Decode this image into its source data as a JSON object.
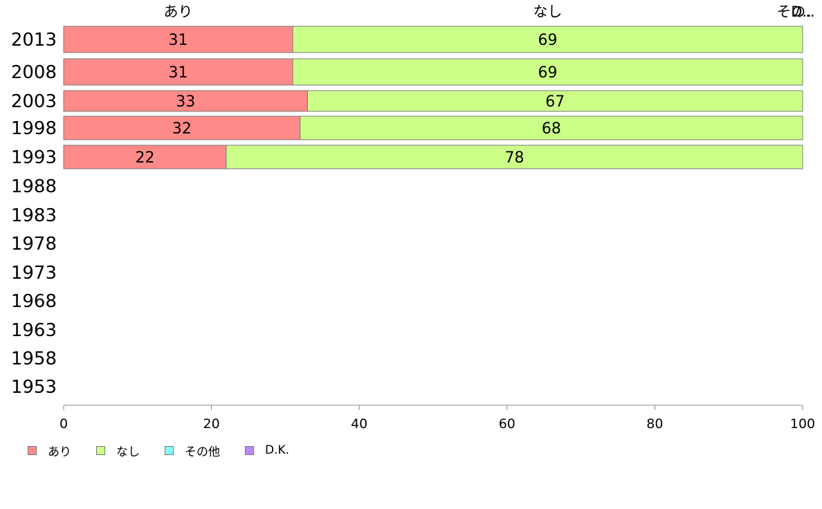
{
  "chart_data": {
    "type": "bar",
    "orientation": "horizontal",
    "stacked": true,
    "categories": [
      "2013",
      "2008",
      "2003",
      "1998",
      "1993",
      "1988",
      "1983",
      "1978",
      "1973",
      "1968",
      "1963",
      "1958",
      "1953"
    ],
    "series": [
      {
        "name": "あり",
        "color": "#ff8a8a",
        "values": [
          31,
          31,
          33,
          32,
          22,
          null,
          null,
          null,
          null,
          null,
          null,
          null,
          null
        ]
      },
      {
        "name": "なし",
        "color": "#ccff88",
        "values": [
          69,
          69,
          67,
          68,
          78,
          null,
          null,
          null,
          null,
          null,
          null,
          null,
          null
        ]
      },
      {
        "name": "その他",
        "color": "#88ffff",
        "values": [
          0,
          0,
          0,
          0,
          0,
          null,
          null,
          null,
          null,
          null,
          null,
          null,
          null
        ]
      },
      {
        "name": "D.K.",
        "color": "#bb88ff",
        "values": [
          0,
          0,
          0,
          0,
          0,
          null,
          null,
          null,
          null,
          null,
          null,
          null,
          null
        ]
      }
    ],
    "data_labels": [
      [
        "31",
        "69"
      ],
      [
        "31",
        "69"
      ],
      [
        "33",
        "67"
      ],
      [
        "32",
        "68"
      ],
      [
        "22",
        "78"
      ]
    ],
    "top_labels": [
      "あり",
      "なし",
      "その..",
      "D.."
    ],
    "xlim": [
      0,
      100
    ],
    "xticks": [
      "0",
      "20",
      "40",
      "60",
      "80",
      "100"
    ],
    "legend_position": "bottom-left",
    "grid": false
  },
  "legend": {
    "items": [
      {
        "label": "あり",
        "color": "#ff8a8a"
      },
      {
        "label": "なし",
        "color": "#ccff88"
      },
      {
        "label": "その他",
        "color": "#88ffff"
      },
      {
        "label": "D.K.",
        "color": "#bb88ff"
      }
    ]
  }
}
